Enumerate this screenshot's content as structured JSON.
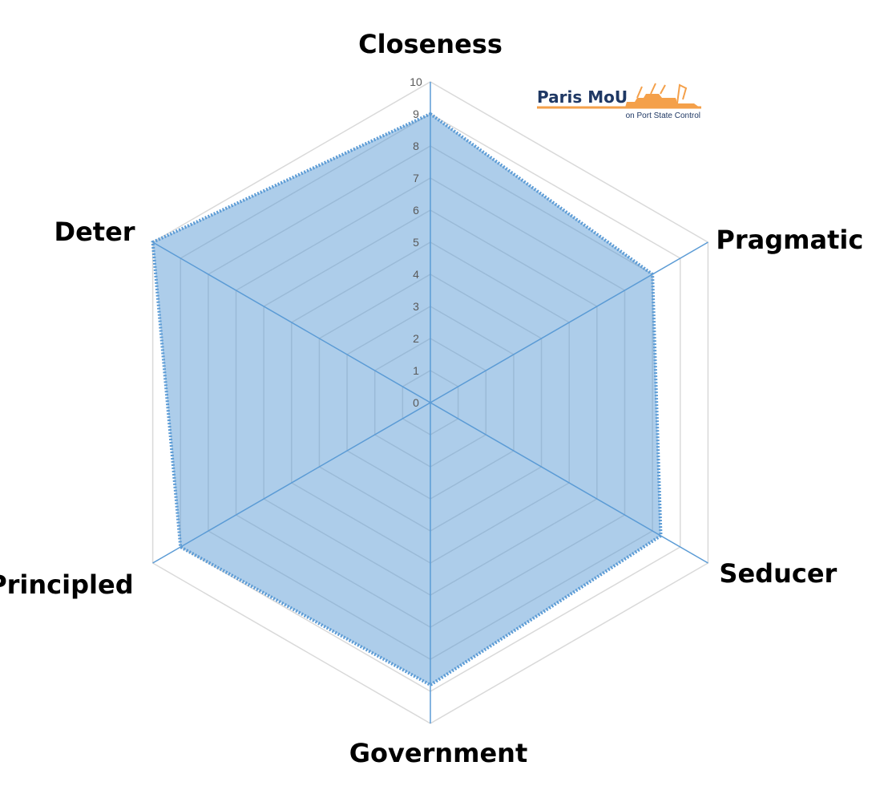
{
  "chart_data": {
    "type": "radar",
    "axes": [
      "Closeness",
      "Pragmatic",
      "Seducer",
      "Government",
      "Principled",
      "Deter"
    ],
    "values": [
      9,
      8,
      8.3,
      8.8,
      9,
      10
    ],
    "ticks": [
      "0",
      "1",
      "2",
      "3",
      "4",
      "5",
      "6",
      "7",
      "8",
      "9",
      "10"
    ],
    "rmax": 10,
    "grid": true,
    "colors": {
      "fill": "#5b9bd5",
      "line": "#5b9bd5",
      "grid": "#d9d9d9",
      "axis": "#5b9bd5"
    }
  },
  "logo": {
    "title": "Paris MoU",
    "subtitle": "on Port State Control",
    "colors": {
      "text": "#1f3864",
      "ship": "#f4a04a"
    }
  }
}
